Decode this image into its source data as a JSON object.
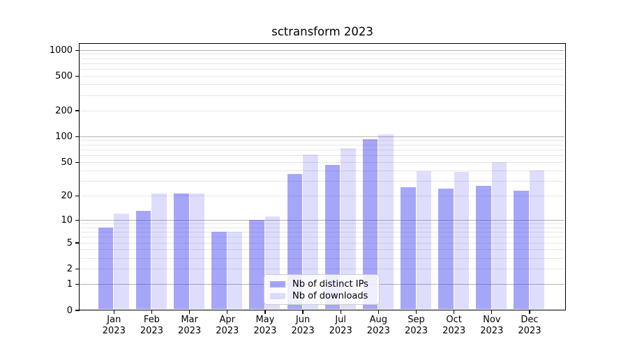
{
  "title": "sctransform 2023",
  "legend": {
    "position": "lower center, inside plot",
    "items": [
      {
        "label": "Nb of distinct IPs",
        "series_key": "distinct_ips"
      },
      {
        "label": "Nb of downloads",
        "series_key": "downloads"
      }
    ]
  },
  "colors": {
    "bar_distinct_ips": "rgba(60,60,240,0.46)",
    "bar_downloads": "rgba(60,60,240,0.17)",
    "bar_distinct_ips_hex_on_white": "#a5a5f4",
    "bar_downloads_hex_on_white": "#dedefb",
    "major_gridline": "#b3b3b3",
    "minor_gridline": "#e6e6e6",
    "axis_and_text": "#000000",
    "legend_border": "#cccccc",
    "background": "#ffffff"
  },
  "chart_data": {
    "type": "bar",
    "title": "sctransform 2023",
    "yscale": "log1p (log-like axis including 0)",
    "grid": "horizontal; gray major lines at 1,10,100,1000; faint minor lines at 2-9 per decade",
    "legend_position": "lower center-left inside plot",
    "categories": [
      "Jan 2023",
      "Feb 2023",
      "Mar 2023",
      "Apr 2023",
      "May 2023",
      "Jun 2023",
      "Jul 2023",
      "Aug 2023",
      "Sep 2023",
      "Oct 2023",
      "Nov 2023",
      "Dec 2023"
    ],
    "series": [
      {
        "name": "Nb of distinct IPs",
        "values": [
          8,
          13,
          21,
          7,
          10,
          36,
          46,
          92,
          25,
          24,
          26,
          23
        ]
      },
      {
        "name": "Nb of downloads",
        "values": [
          12,
          21,
          21,
          7,
          11,
          61,
          72,
          105,
          39,
          38,
          50,
          40
        ]
      }
    ],
    "yticks": [
      0,
      1,
      2,
      5,
      10,
      20,
      50,
      100,
      200,
      500,
      1000
    ],
    "ylim": [
      0,
      1180
    ],
    "xlabel": "",
    "ylabel": ""
  }
}
